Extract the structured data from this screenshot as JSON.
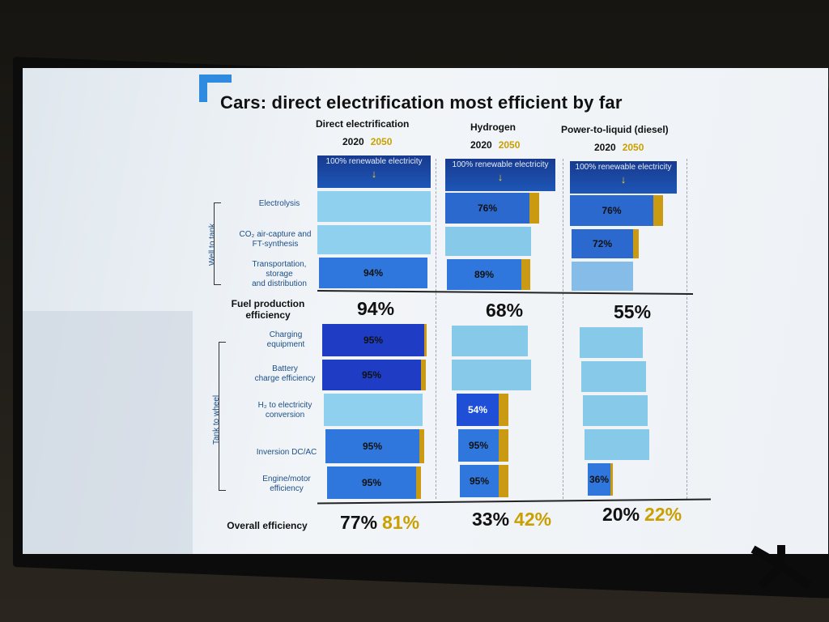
{
  "slide": {
    "title": "Cars: direct electrification most efficient by far",
    "columns": [
      {
        "name": "Direct electrification",
        "year_a": "2020",
        "year_b": "2050"
      },
      {
        "name": "Hydrogen",
        "year_a": "2020",
        "year_b": "2050"
      },
      {
        "name": "Power-to-liquid (diesel)",
        "year_a": "2020",
        "year_b": "2050"
      }
    ],
    "source_label": "100% renewable electricity",
    "group_labels": {
      "well_to_tank": "Well to tank",
      "tank_to_wheel": "Tank to wheel"
    },
    "row_labels": {
      "electrolysis": "Electrolysis",
      "co2_line1": "CO₂ air-capture and",
      "co2_line2": "FT-synthesis",
      "transport_line1": "Transportation,",
      "transport_line2": "storage",
      "transport_line3": "and distribution",
      "fuel_line1": "Fuel production",
      "fuel_line2": "efficiency",
      "charging_line1": "Charging",
      "charging_line2": "equipment",
      "battery_line1": "Battery",
      "battery_line2": "charge efficiency",
      "h2_line1": "H₂ to electricity",
      "h2_line2": "conversion",
      "inversion": "Inversion DC/AC",
      "engine_line1": "Engine/motor",
      "engine_line2": "efficiency",
      "overall": "Overall efficiency"
    },
    "cells": {
      "de_transport": "94%",
      "h_electrolysis": "76%",
      "h_transport": "89%",
      "p_electrolysis": "76%",
      "p_co2": "72%",
      "de_charging": "95%",
      "de_battery": "95%",
      "h_h2conv": "54%",
      "de_inversion": "95%",
      "h_inversion": "95%",
      "de_engine": "95%",
      "h_engine": "95%",
      "p_engine": "36%"
    },
    "fuel_production": {
      "de": "94%",
      "h": "68%",
      "p": "55%"
    },
    "overall": {
      "de_2020": "77%",
      "de_2050": "81%",
      "h_2020": "33%",
      "h_2050": "42%",
      "p_2020": "20%",
      "p_2050": "22%"
    },
    "colors": {
      "dark_blue": "#1a3f9e",
      "mid_blue": "#2b6fd6",
      "light_blue": "#86c7e6",
      "gold": "#c9a000"
    },
    "icons": [
      "down-arrow-icon"
    ]
  }
}
